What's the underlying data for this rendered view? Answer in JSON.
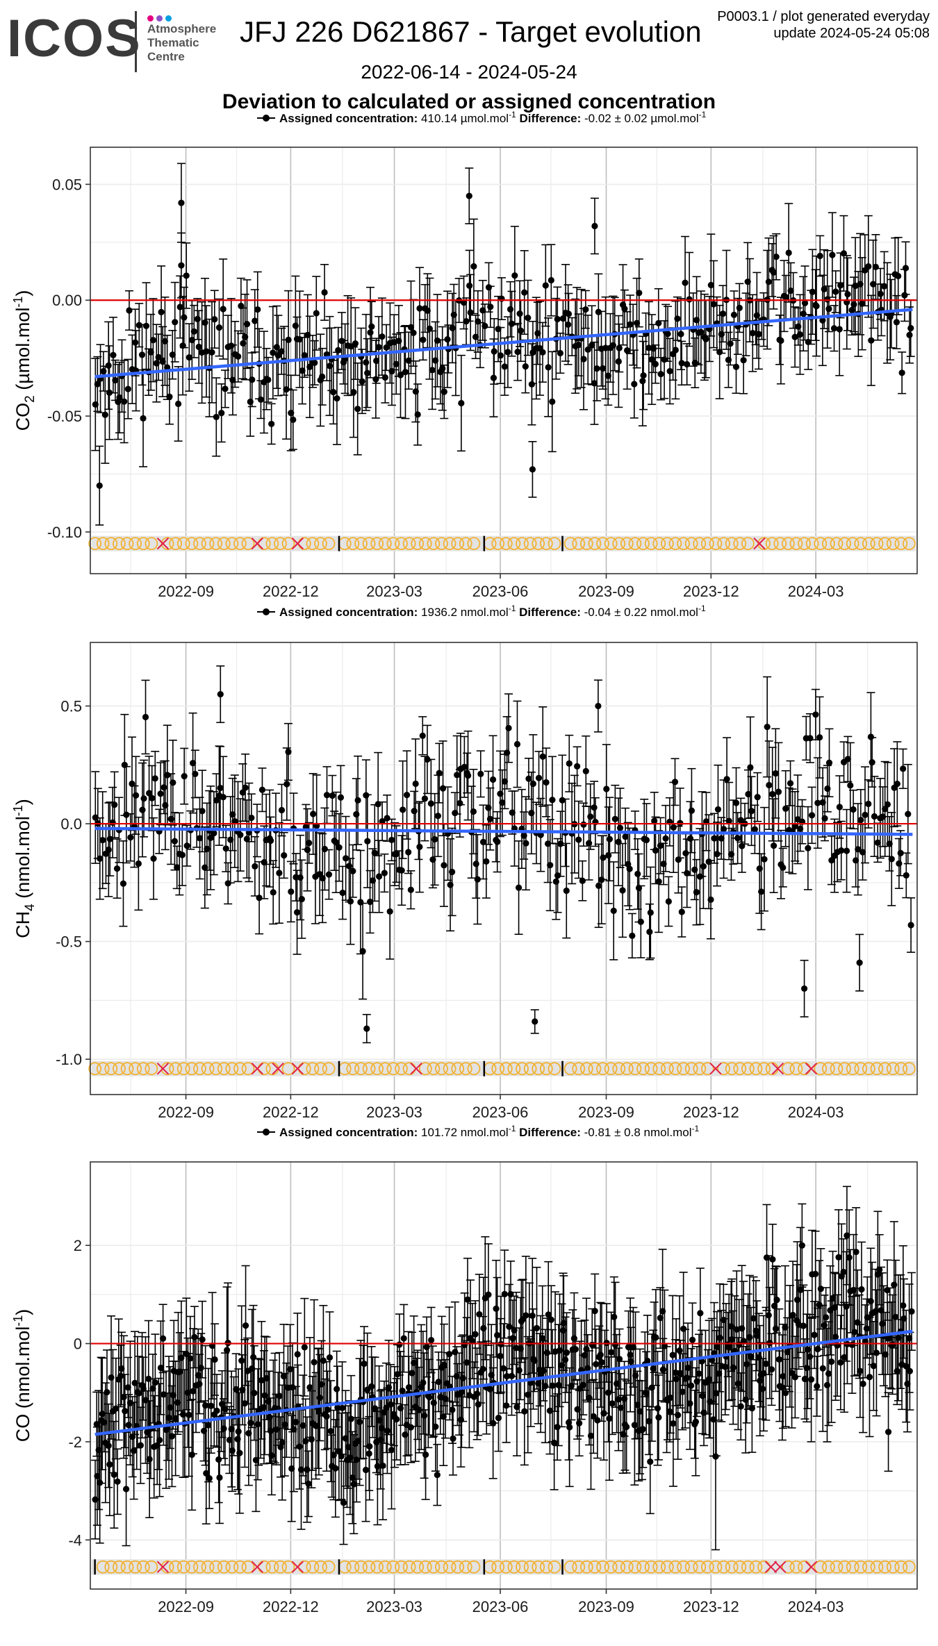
{
  "header": {
    "logo_text": "ICOS",
    "logo_subtitle": [
      "Atmosphere",
      "Thematic",
      "Centre"
    ],
    "logo_dot_colors": [
      "#e4007f",
      "#8a53c8",
      "#00a0e1"
    ],
    "title": "JFJ 226 D621867 - Target evolution",
    "date_range": "2022-06-14 - 2024-05-24",
    "heading": "Deviation to calculated or assigned concentration",
    "plot_id": "P0003.1 / plot generated everyday",
    "update": "update  2024-05-24 05:08"
  },
  "colors": {
    "points": "#000000",
    "zero_line": "#e00000",
    "trend_line": "#3366ff",
    "marker_circle": "#f2b233",
    "marker_cross": "#e0204a",
    "marker_band": "#e3e3e3",
    "panel_border": "#333333",
    "grid_major": "#bdbdbd",
    "grid_minor": "#ebebeb"
  },
  "chart_data": [
    {
      "type": "scatter",
      "gas": "CO2",
      "ylabel_main": "CO",
      "ylabel_sub": "2",
      "ylabel_unit_pre": " (µmol.mol",
      "ylabel_unit_sup": "-1",
      "ylabel_unit_post": ")",
      "legend": {
        "label": "Assigned concentration:",
        "value": "410.14 µmol.mol",
        "value_sup": "-1",
        "diff_label": "Difference:",
        "diff_value": "-0.02 ± 0.02 µmol.mol",
        "diff_sup": "-1"
      },
      "xlim": [
        "2022-06-10",
        "2024-05-28"
      ],
      "ylim": [
        -0.118,
        0.066
      ],
      "x_ticks": [
        "2022-09",
        "2022-12",
        "2023-03",
        "2023-06",
        "2023-09",
        "2023-12",
        "2024-03"
      ],
      "y_ticks": [
        -0.1,
        -0.05,
        0.0,
        0.05
      ],
      "y_tick_labels": [
        "-0.10",
        "-0.05",
        "0.00",
        "0.05"
      ],
      "trend": {
        "start": [
          "2022-06-14",
          -0.033
        ],
        "end": [
          "2024-05-24",
          -0.004
        ]
      },
      "reference_value": 0.0,
      "marker_row_y": -0.105,
      "crosses": [
        "2022-08-12",
        "2022-11-02",
        "2022-12-07",
        "2024-01-12"
      ],
      "bars": [
        "2023-01-12",
        "2023-05-18",
        "2023-07-25"
      ],
      "noise": {
        "sd": 0.015,
        "err": [
          0.008,
          0.022
        ],
        "n": 340,
        "seed": 11
      },
      "highlights": [
        {
          "x": "2022-08-28",
          "y": 0.042,
          "err": 0.017
        },
        {
          "x": "2022-08-28",
          "y": 0.015,
          "err": 0.014
        },
        {
          "x": "2023-05-05",
          "y": 0.045,
          "err": 0.012
        },
        {
          "x": "2023-08-22",
          "y": 0.032,
          "err": 0.012
        },
        {
          "x": "2022-06-18",
          "y": -0.08,
          "err": 0.017
        },
        {
          "x": "2023-06-29",
          "y": -0.073,
          "err": 0.012
        }
      ]
    },
    {
      "type": "scatter",
      "gas": "CH4",
      "ylabel_main": "CH",
      "ylabel_sub": "4",
      "ylabel_unit_pre": " (nmol.mol",
      "ylabel_unit_sup": "-1",
      "ylabel_unit_post": ")",
      "legend": {
        "label": "Assigned concentration:",
        "value": "1936.2 nmol.mol",
        "value_sup": "-1",
        "diff_label": "Difference:",
        "diff_value": "-0.04 ± 0.22 nmol.mol",
        "diff_sup": "-1"
      },
      "xlim": [
        "2022-06-10",
        "2024-05-28"
      ],
      "ylim": [
        -1.15,
        0.77
      ],
      "x_ticks": [
        "2022-09",
        "2022-12",
        "2023-03",
        "2023-06",
        "2023-09",
        "2023-12",
        "2024-03"
      ],
      "y_ticks": [
        -1.0,
        -0.5,
        0.0,
        0.5
      ],
      "y_tick_labels": [
        "-1.0",
        "-0.5",
        "0.0",
        "0.5"
      ],
      "trend": {
        "start": [
          "2022-06-14",
          -0.02
        ],
        "end": [
          "2024-05-24",
          -0.045
        ]
      },
      "reference_value": 0.0,
      "marker_row_y": -1.04,
      "crosses": [
        "2022-08-12",
        "2022-11-02",
        "2022-11-20",
        "2022-12-07",
        "2023-03-20",
        "2023-12-05",
        "2024-01-28",
        "2024-02-26"
      ],
      "bars": [
        "2023-01-12",
        "2023-05-18",
        "2023-07-25"
      ],
      "noise": {
        "sd": 0.2,
        "err": [
          0.08,
          0.22
        ],
        "n": 340,
        "seed": 23
      },
      "highlights": [
        {
          "x": "2022-10-01",
          "y": 0.55,
          "err": 0.12
        },
        {
          "x": "2023-08-25",
          "y": 0.5,
          "err": 0.11
        },
        {
          "x": "2023-02-05",
          "y": -0.87,
          "err": 0.06
        },
        {
          "x": "2023-07-01",
          "y": -0.84,
          "err": 0.05
        },
        {
          "x": "2024-02-20",
          "y": -0.7,
          "err": 0.12
        },
        {
          "x": "2024-04-08",
          "y": -0.59,
          "err": 0.12
        }
      ]
    },
    {
      "type": "scatter",
      "gas": "CO",
      "ylabel_main": "CO",
      "ylabel_sub": "",
      "ylabel_unit_pre": " (nmol.mol",
      "ylabel_unit_sup": "-1",
      "ylabel_unit_post": ")",
      "legend": {
        "label": "Assigned concentration:",
        "value": "101.72 nmol.mol",
        "value_sup": "-1",
        "diff_label": "Difference:",
        "diff_value": "-0.81 ± 0.8 nmol.mol",
        "diff_sup": "-1"
      },
      "xlim": [
        "2022-06-10",
        "2024-05-28"
      ],
      "ylim": [
        -5.0,
        3.7
      ],
      "x_ticks": [
        "2022-09",
        "2022-12",
        "2023-03",
        "2023-06",
        "2023-09",
        "2023-12",
        "2024-03"
      ],
      "y_ticks": [
        -4,
        -2,
        0,
        2
      ],
      "y_tick_labels": [
        "-4",
        "-2",
        "0",
        "2"
      ],
      "trend": {
        "start": [
          "2022-06-14",
          -1.85
        ],
        "end": [
          "2024-05-24",
          0.25
        ]
      },
      "reference_value": 0.0,
      "marker_row_y": -4.55,
      "crosses": [
        "2022-08-12",
        "2022-11-02",
        "2022-12-07",
        "2024-01-22",
        "2024-01-30",
        "2024-02-26"
      ],
      "bars": [
        "2022-06-14",
        "2023-01-12",
        "2023-05-18",
        "2023-07-25"
      ],
      "noise": {
        "sd": 0.85,
        "err": [
          0.6,
          1.3
        ],
        "n": 560,
        "seed": 37
      },
      "highlights": [
        {
          "x": "2024-03-28",
          "y": 2.2,
          "err": 1.0
        },
        {
          "x": "2023-12-05",
          "y": -2.3,
          "err": 1.9
        },
        {
          "x": "2024-05-03",
          "y": -1.8,
          "err": 0.8
        },
        {
          "x": "2022-06-16",
          "y": -2.7,
          "err": 1.0
        }
      ]
    }
  ]
}
